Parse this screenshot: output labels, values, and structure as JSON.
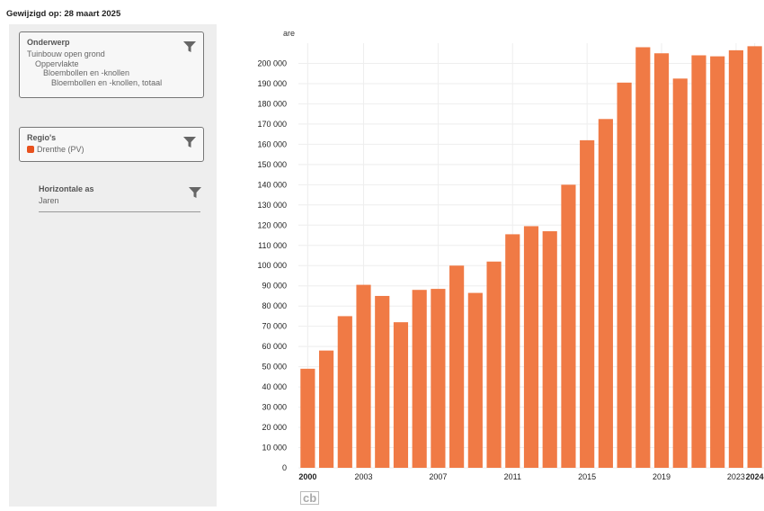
{
  "header": {
    "modified": "Gewijzigd op: 28 maart 2025"
  },
  "filters": {
    "onderwerp": {
      "title": "Onderwerp",
      "lines": [
        "Tuinbouw open grond",
        "Oppervlakte",
        "Bloembollen en -knollen",
        "Bloembollen en -knollen, totaal"
      ]
    },
    "regios": {
      "title": "Regio's",
      "item": "Drenthe (PV)",
      "swatch_color": "#e8511d"
    },
    "horizontale_as": {
      "title": "Horizontale as",
      "value": "Jaren"
    },
    "funnel_icon": "filter-funnel-icon"
  },
  "colors": {
    "bar": "#f07a45"
  },
  "chart_data": {
    "type": "bar",
    "ylabel": "are",
    "ylim": [
      0,
      210000
    ],
    "y_ticks": [
      0,
      10000,
      20000,
      30000,
      40000,
      50000,
      60000,
      70000,
      80000,
      90000,
      100000,
      110000,
      120000,
      130000,
      140000,
      150000,
      160000,
      170000,
      180000,
      190000,
      200000
    ],
    "y_tick_labels": [
      "0",
      "10 000",
      "20 000",
      "30 000",
      "40 000",
      "50 000",
      "60 000",
      "70 000",
      "80 000",
      "90 000",
      "100 000",
      "110 000",
      "120 000",
      "130 000",
      "140 000",
      "150 000",
      "160 000",
      "170 000",
      "180 000",
      "190 000",
      "200 000"
    ],
    "categories": [
      "2000",
      "2001",
      "2002",
      "2003",
      "2004",
      "2005",
      "2006",
      "2007",
      "2008",
      "2009",
      "2010",
      "2011",
      "2012",
      "2013",
      "2014",
      "2015",
      "2016",
      "2017",
      "2018",
      "2019",
      "2020",
      "2021",
      "2022",
      "2023",
      "2024"
    ],
    "values": [
      49000,
      58000,
      75000,
      90500,
      85000,
      72000,
      88000,
      88500,
      100000,
      86500,
      102000,
      115500,
      119500,
      117000,
      140000,
      162000,
      172500,
      190500,
      208000,
      205000,
      192500,
      204000,
      203500,
      206500,
      208500
    ],
    "x_tick_labels": [
      {
        "category": "2000",
        "label": "2000",
        "bold": true
      },
      {
        "category": "2003",
        "label": "2003",
        "bold": false
      },
      {
        "category": "2007",
        "label": "2007",
        "bold": false
      },
      {
        "category": "2011",
        "label": "2011",
        "bold": false
      },
      {
        "category": "2015",
        "label": "2015",
        "bold": false
      },
      {
        "category": "2019",
        "label": "2019",
        "bold": false
      },
      {
        "category": "2023",
        "label": "2023",
        "bold": false
      },
      {
        "category": "2024",
        "label": "2024",
        "bold": true
      }
    ],
    "grid": true
  },
  "footer": {
    "logo": "cb"
  }
}
